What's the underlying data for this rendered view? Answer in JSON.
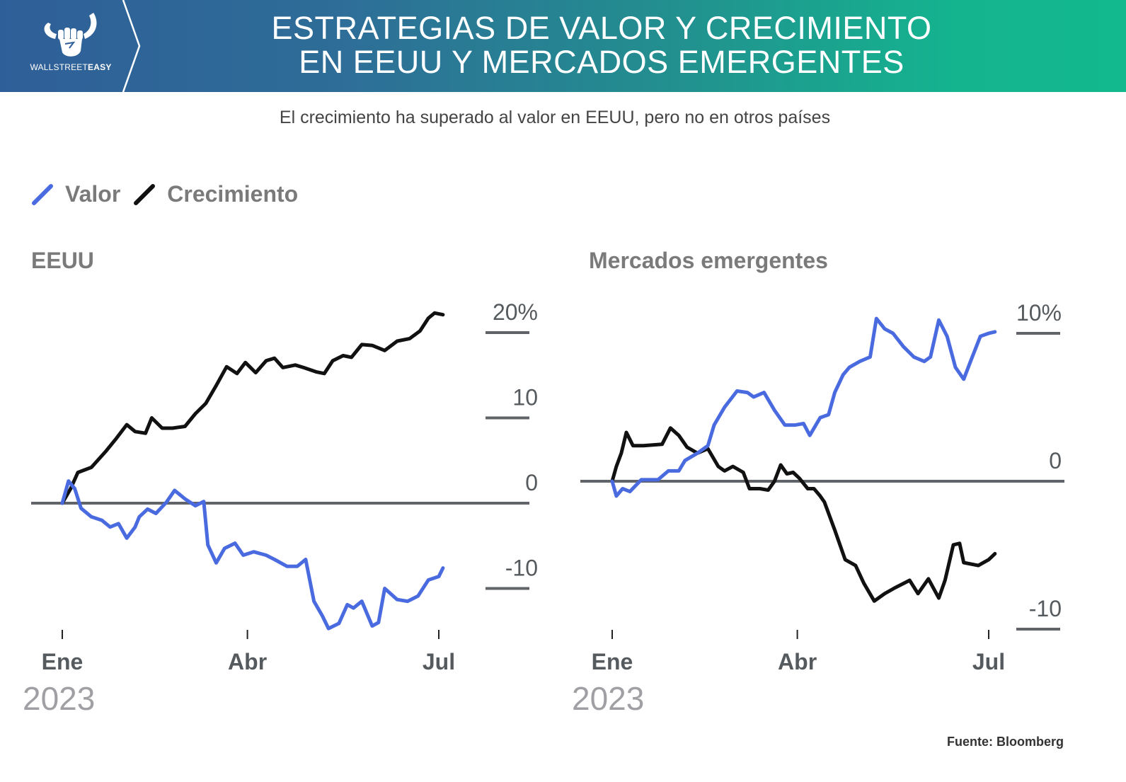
{
  "header": {
    "logo_text_light": "WALLSTREET",
    "logo_text_bold": "EASY",
    "title_line1": "ESTRATEGIAS DE VALOR Y CRECIMIENTO",
    "title_line2": "EN EEUU Y MERCADOS EMERGENTES"
  },
  "subtitle": "El crecimiento ha superado al valor en EEUU, pero no en otros países",
  "legend": [
    {
      "label": "Valor",
      "color": "#4a6be0"
    },
    {
      "label": "Crecimiento",
      "color": "#111111"
    }
  ],
  "source": "Fuente: Bloomberg",
  "chart_data": [
    {
      "type": "line",
      "title": "EEUU",
      "xlabel": "",
      "ylabel": "",
      "x_unit": "day of 2023",
      "x_ticks": [
        {
          "value": 0,
          "label": "Ene"
        },
        {
          "value": 89,
          "label": "Abr"
        },
        {
          "value": 181,
          "label": "Jul"
        }
      ],
      "year_label": "2023",
      "xlim": [
        -15,
        225
      ],
      "ylim": [
        -16,
        24
      ],
      "y_ticks": [
        {
          "value": 20,
          "label": "20%"
        },
        {
          "value": 10,
          "label": "10"
        },
        {
          "value": 0,
          "label": "0"
        },
        {
          "value": -10,
          "label": "-10"
        }
      ],
      "series": [
        {
          "name": "Crecimiento",
          "color": "#111111",
          "x": [
            0,
            4,
            7.5,
            14,
            21,
            26,
            31,
            35,
            40,
            43,
            48,
            53,
            59,
            64,
            69,
            74,
            79,
            84,
            88,
            93,
            98,
            102,
            106,
            112,
            116,
            122,
            126,
            130,
            135,
            139,
            144,
            149,
            155,
            161,
            167,
            172,
            176,
            179,
            183
          ],
          "y": [
            0,
            1.7,
            3.6,
            4.2,
            6.1,
            7.6,
            9.2,
            8.4,
            8.2,
            10,
            8.8,
            8.8,
            9.0,
            10.5,
            11.7,
            13.8,
            16.0,
            15.2,
            16.5,
            15.3,
            16.7,
            17.0,
            15.9,
            16.2,
            15.9,
            15.4,
            15.2,
            16.7,
            17.3,
            17.1,
            18.6,
            18.5,
            17.9,
            19.0,
            19.3,
            20.2,
            21.7,
            22.3,
            22.1
          ]
        },
        {
          "name": "Valor",
          "color": "#4a6be0",
          "x": [
            0,
            3,
            6,
            9,
            14,
            19,
            23,
            27,
            31,
            35,
            37,
            41,
            45,
            50,
            54,
            59,
            64,
            68,
            70,
            74,
            78,
            83,
            87,
            92,
            98,
            102,
            108,
            113,
            117,
            121,
            125,
            128,
            133,
            137,
            140,
            144,
            149,
            152,
            155,
            161,
            166,
            171,
            176,
            181,
            183
          ],
          "y": [
            0,
            2.6,
            1.7,
            -0.6,
            -1.6,
            -2.0,
            -2.8,
            -2.4,
            -4.1,
            -2.8,
            -1.6,
            -0.7,
            -1.2,
            0.1,
            1.5,
            0.5,
            -0.3,
            0.2,
            -4.9,
            -7.0,
            -5.3,
            -4.7,
            -6.1,
            -5.7,
            -6.1,
            -6.6,
            -7.4,
            -7.4,
            -6.6,
            -11.5,
            -13.2,
            -14.7,
            -14.1,
            -11.9,
            -12.3,
            -11.5,
            -14.4,
            -14.0,
            -10.0,
            -11.3,
            -11.5,
            -10.9,
            -9.0,
            -8.6,
            -7.6
          ]
        }
      ]
    },
    {
      "type": "line",
      "title": "Mercados emergentes",
      "xlabel": "",
      "ylabel": "",
      "x_unit": "day of 2023",
      "x_ticks": [
        {
          "value": 0,
          "label": "Ene"
        },
        {
          "value": 89,
          "label": "Abr"
        },
        {
          "value": 181,
          "label": "Jul"
        }
      ],
      "year_label": "2023",
      "xlim": [
        -15,
        225
      ],
      "ylim": [
        -11,
        12
      ],
      "y_ticks": [
        {
          "value": 10,
          "label": "10%"
        },
        {
          "value": 0,
          "label": "0"
        },
        {
          "value": -10,
          "label": "-10"
        }
      ],
      "series": [
        {
          "name": "Crecimiento",
          "color": "#111111",
          "x": [
            0,
            2,
            4.4,
            6.8,
            10,
            15,
            24,
            28,
            32,
            36,
            41,
            46,
            51,
            54,
            58,
            63,
            66,
            71,
            75,
            78,
            81,
            84,
            87,
            90,
            94,
            97,
            100,
            102,
            107,
            112,
            117,
            121,
            126,
            131,
            136,
            143,
            147,
            152,
            157,
            160,
            164,
            167,
            169,
            176,
            181,
            184
          ],
          "y": [
            0,
            1.0,
            1.9,
            3.3,
            2.4,
            2.4,
            2.5,
            3.6,
            3.1,
            2.3,
            1.9,
            2.2,
            1.0,
            0.7,
            1.0,
            0.6,
            -0.5,
            -0.5,
            -0.6,
            0,
            1.1,
            0.5,
            0.6,
            0.2,
            -0.5,
            -0.5,
            -1.0,
            -1.4,
            -3.3,
            -5.3,
            -5.7,
            -6.9,
            -8.1,
            -7.6,
            -7.2,
            -6.7,
            -7.6,
            -6.6,
            -7.9,
            -6.7,
            -4.3,
            -4.2,
            -5.5,
            -5.7,
            -5.3,
            -4.9
          ]
        },
        {
          "name": "Valor",
          "color": "#4a6be0",
          "x": [
            0,
            2,
            5,
            8.5,
            14,
            22,
            27,
            32,
            35,
            41,
            46,
            49,
            54,
            60,
            65,
            68,
            73,
            78,
            83,
            88,
            92,
            95,
            100,
            104,
            107,
            111,
            114,
            119,
            124,
            127,
            131,
            135,
            140,
            145,
            150,
            153,
            157,
            161,
            165,
            169,
            172,
            177,
            181,
            184
          ],
          "y": [
            0,
            -1.0,
            -0.5,
            -0.7,
            0.1,
            0.1,
            0.7,
            0.7,
            1.4,
            1.9,
            2.4,
            3.8,
            5.0,
            6.1,
            6.0,
            5.7,
            6.0,
            4.8,
            3.8,
            3.8,
            3.9,
            3.1,
            4.3,
            4.5,
            6.0,
            7.2,
            7.7,
            8.1,
            8.4,
            11.0,
            10.3,
            10.0,
            9.1,
            8.4,
            8.1,
            8.4,
            10.9,
            9.8,
            7.7,
            6.9,
            8.0,
            9.8,
            10.0,
            10.1
          ]
        }
      ]
    }
  ]
}
